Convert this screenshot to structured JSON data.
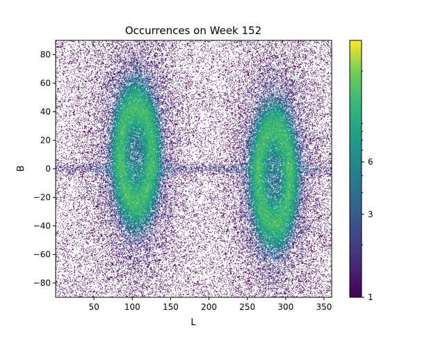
{
  "chart_data": {
    "type": "heatmap",
    "title": "Occurrences on Week 152",
    "xlabel": "L",
    "ylabel": "B",
    "xlim": [
      0,
      360
    ],
    "ylim": [
      -90,
      90
    ],
    "x_ticks": [
      50,
      100,
      150,
      200,
      250,
      300,
      350
    ],
    "y_ticks": [
      -80,
      -60,
      -40,
      -20,
      0,
      20,
      40,
      60,
      80
    ],
    "colorbar": {
      "scale": "log",
      "min": 1,
      "max": 30,
      "ticks": [
        1,
        3,
        6
      ],
      "colormap": "viridis"
    },
    "grid": false,
    "background_color": "#ffffff",
    "features": [
      {
        "shape": "ring",
        "center": [
          105,
          10
        ],
        "radii": [
          28,
          45
        ],
        "peak": 20
      },
      {
        "shape": "ring",
        "center": [
          285,
          -5
        ],
        "radii": [
          28,
          45
        ],
        "peak": 20
      },
      {
        "shape": "band",
        "b": 0,
        "peak": 6
      }
    ]
  }
}
